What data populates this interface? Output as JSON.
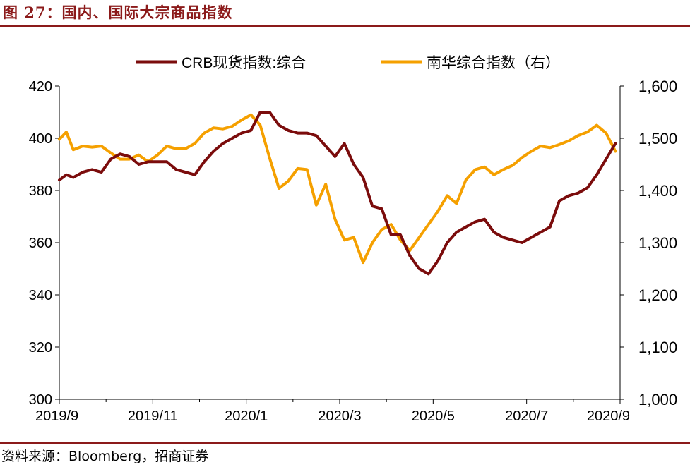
{
  "figure": {
    "title": "图 27：国内、国际大宗商品指数",
    "source": "资料来源：Bloomberg，招商证券"
  },
  "colors": {
    "crb": "#7b0c0c",
    "nanhua": "#f5a000",
    "accent": "#8b1a1a",
    "axis": "#000000"
  },
  "chart_data": {
    "type": "line",
    "title": "",
    "legend": [
      "CRB现货指数:综合",
      "南华综合指数（右）"
    ],
    "legend_position": "top",
    "xlabel": "",
    "ylabel_left": "",
    "ylabel_right": "",
    "x_tick_labels": [
      "2019/9",
      "2019/11",
      "2020/1",
      "2020/3",
      "2020/5",
      "2020/7",
      "2020/9"
    ],
    "y_left_ticks": [
      "420",
      "400",
      "380",
      "360",
      "340",
      "320",
      "300"
    ],
    "y_right_ticks": [
      "1,600",
      "1,500",
      "1,400",
      "1,300",
      "1,200",
      "1,100",
      "1,000"
    ],
    "y_left_range": [
      300,
      420
    ],
    "y_right_range": [
      1000,
      1600
    ],
    "x_range_months": [
      0,
      12
    ],
    "series": [
      {
        "name": "CRB现货指数:综合",
        "axis": "left",
        "x_months": [
          0,
          0.15,
          0.3,
          0.5,
          0.7,
          0.9,
          1.1,
          1.3,
          1.5,
          1.7,
          1.9,
          2.1,
          2.3,
          2.5,
          2.7,
          2.9,
          3.1,
          3.3,
          3.5,
          3.7,
          3.9,
          4.1,
          4.3,
          4.5,
          4.7,
          4.9,
          5.1,
          5.3,
          5.5,
          5.7,
          5.9,
          6.1,
          6.3,
          6.5,
          6.7,
          6.9,
          7.1,
          7.3,
          7.5,
          7.7,
          7.9,
          8.1,
          8.3,
          8.5,
          8.7,
          8.9,
          9.1,
          9.3,
          9.5,
          9.7,
          9.9,
          10.1,
          10.3,
          10.5,
          10.7,
          10.9,
          11.1,
          11.3,
          11.5,
          11.7,
          11.9
        ],
        "values": [
          384,
          386,
          385,
          387,
          388,
          387,
          392,
          394,
          393,
          390,
          391,
          391,
          391,
          388,
          387,
          386,
          391,
          395,
          398,
          400,
          402,
          403,
          410,
          410,
          405,
          403,
          402,
          402,
          401,
          397,
          393,
          398,
          390,
          385,
          374,
          373,
          363,
          363,
          355,
          350,
          348,
          353,
          360,
          364,
          366,
          368,
          369,
          364,
          362,
          361,
          360,
          362,
          364,
          366,
          376,
          378,
          379,
          381,
          386,
          392,
          398
        ]
      },
      {
        "name": "南华综合指数（右）",
        "axis": "right",
        "x_months": [
          0,
          0.15,
          0.3,
          0.5,
          0.7,
          0.9,
          1.1,
          1.3,
          1.5,
          1.7,
          1.9,
          2.1,
          2.3,
          2.5,
          2.7,
          2.9,
          3.1,
          3.3,
          3.5,
          3.7,
          3.9,
          4.1,
          4.3,
          4.5,
          4.7,
          4.9,
          5.1,
          5.3,
          5.5,
          5.7,
          5.9,
          6.1,
          6.3,
          6.5,
          6.7,
          6.9,
          7.1,
          7.3,
          7.5,
          7.7,
          7.9,
          8.1,
          8.3,
          8.5,
          8.7,
          8.9,
          9.1,
          9.3,
          9.5,
          9.7,
          9.9,
          10.1,
          10.3,
          10.5,
          10.7,
          10.9,
          11.1,
          11.3,
          11.5,
          11.7,
          11.9
        ],
        "values": [
          1498,
          1512,
          1478,
          1485,
          1483,
          1485,
          1472,
          1460,
          1460,
          1468,
          1455,
          1468,
          1485,
          1480,
          1480,
          1490,
          1510,
          1520,
          1518,
          1523,
          1535,
          1545,
          1525,
          1462,
          1404,
          1418,
          1442,
          1440,
          1372,
          1412,
          1345,
          1305,
          1310,
          1262,
          1300,
          1325,
          1335,
          1305,
          1285,
          1310,
          1335,
          1360,
          1390,
          1375,
          1420,
          1440,
          1445,
          1430,
          1440,
          1448,
          1463,
          1475,
          1485,
          1482,
          1488,
          1495,
          1505,
          1512,
          1525,
          1510,
          1475
        ]
      }
    ]
  }
}
